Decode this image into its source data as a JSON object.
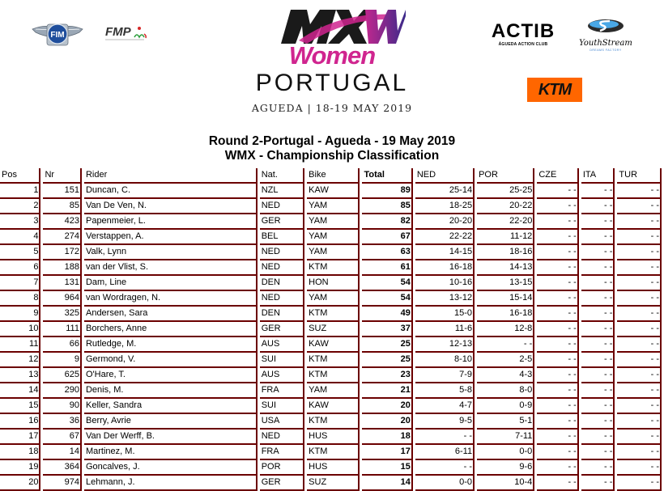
{
  "logos": {
    "fim": "FIM",
    "fmp": "FMP",
    "event": {
      "mark": "MXW",
      "women": "Women",
      "country": "PORTUGAL",
      "dates": "AGUEDA | 18-19 MAY 2019"
    },
    "actib": {
      "name": "ACTIB",
      "subtitle": "ÁGUEDA ACTION CLUB"
    },
    "youthstream": {
      "name": "YouthStream",
      "subtitle": "DREAMS FACTORY"
    },
    "ktm": "KTM"
  },
  "header": {
    "title_line1": "Round 2-Portugal - Agueda - 19 May 2019",
    "title_line2": "WMX - Championship Classification"
  },
  "colors": {
    "border": "#6b0000",
    "pink": "#d0258f",
    "ktm_orange": "#ff6600"
  },
  "table": {
    "columns": [
      "Pos",
      "Nr",
      "Rider",
      "Nat.",
      "Bike",
      "Total",
      "NED",
      "POR",
      "CZE",
      "ITA",
      "TUR"
    ],
    "rows": [
      {
        "pos": "1",
        "nr": "151",
        "rider": "Duncan, C.",
        "nat": "NZL",
        "bike": "KAW",
        "total": "89",
        "ned": "25-14",
        "por": "25-25",
        "cze": "- -",
        "ita": "- -",
        "tur": "- -"
      },
      {
        "pos": "2",
        "nr": "85",
        "rider": "Van De Ven, N.",
        "nat": "NED",
        "bike": "YAM",
        "total": "85",
        "ned": "18-25",
        "por": "20-22",
        "cze": "- -",
        "ita": "- -",
        "tur": "- -"
      },
      {
        "pos": "3",
        "nr": "423",
        "rider": "Papenmeier, L.",
        "nat": "GER",
        "bike": "YAM",
        "total": "82",
        "ned": "20-20",
        "por": "22-20",
        "cze": "- -",
        "ita": "- -",
        "tur": "- -"
      },
      {
        "pos": "4",
        "nr": "274",
        "rider": "Verstappen, A.",
        "nat": "BEL",
        "bike": "YAM",
        "total": "67",
        "ned": "22-22",
        "por": "11-12",
        "cze": "- -",
        "ita": "- -",
        "tur": "- -"
      },
      {
        "pos": "5",
        "nr": "172",
        "rider": "Valk, Lynn",
        "nat": "NED",
        "bike": "YAM",
        "total": "63",
        "ned": "14-15",
        "por": "18-16",
        "cze": "- -",
        "ita": "- -",
        "tur": "- -"
      },
      {
        "pos": "6",
        "nr": "188",
        "rider": "van der Vlist, S.",
        "nat": "NED",
        "bike": "KTM",
        "total": "61",
        "ned": "16-18",
        "por": "14-13",
        "cze": "- -",
        "ita": "- -",
        "tur": "- -"
      },
      {
        "pos": "7",
        "nr": "131",
        "rider": "Dam, Line",
        "nat": "DEN",
        "bike": "HON",
        "total": "54",
        "ned": "10-16",
        "por": "13-15",
        "cze": "- -",
        "ita": "- -",
        "tur": "- -"
      },
      {
        "pos": "8",
        "nr": "964",
        "rider": "van Wordragen, N.",
        "nat": "NED",
        "bike": "YAM",
        "total": "54",
        "ned": "13-12",
        "por": "15-14",
        "cze": "- -",
        "ita": "- -",
        "tur": "- -"
      },
      {
        "pos": "9",
        "nr": "325",
        "rider": "Andersen, Sara",
        "nat": "DEN",
        "bike": "KTM",
        "total": "49",
        "ned": "15-0",
        "por": "16-18",
        "cze": "- -",
        "ita": "- -",
        "tur": "- -"
      },
      {
        "pos": "10",
        "nr": "111",
        "rider": "Borchers, Anne",
        "nat": "GER",
        "bike": "SUZ",
        "total": "37",
        "ned": "11-6",
        "por": "12-8",
        "cze": "- -",
        "ita": "- -",
        "tur": "- -"
      },
      {
        "pos": "11",
        "nr": "66",
        "rider": "Rutledge, M.",
        "nat": "AUS",
        "bike": "KAW",
        "total": "25",
        "ned": "12-13",
        "por": "- -",
        "cze": "- -",
        "ita": "- -",
        "tur": "- -"
      },
      {
        "pos": "12",
        "nr": "9",
        "rider": "Germond, V.",
        "nat": "SUI",
        "bike": "KTM",
        "total": "25",
        "ned": "8-10",
        "por": "2-5",
        "cze": "- -",
        "ita": "- -",
        "tur": "- -"
      },
      {
        "pos": "13",
        "nr": "625",
        "rider": "O'Hare, T.",
        "nat": "AUS",
        "bike": "KTM",
        "total": "23",
        "ned": "7-9",
        "por": "4-3",
        "cze": "- -",
        "ita": "- -",
        "tur": "- -"
      },
      {
        "pos": "14",
        "nr": "290",
        "rider": "Denis, M.",
        "nat": "FRA",
        "bike": "YAM",
        "total": "21",
        "ned": "5-8",
        "por": "8-0",
        "cze": "- -",
        "ita": "- -",
        "tur": "- -"
      },
      {
        "pos": "15",
        "nr": "90",
        "rider": "Keller, Sandra",
        "nat": "SUI",
        "bike": "KAW",
        "total": "20",
        "ned": "4-7",
        "por": "0-9",
        "cze": "- -",
        "ita": "- -",
        "tur": "- -"
      },
      {
        "pos": "16",
        "nr": "36",
        "rider": "Berry, Avrie",
        "nat": "USA",
        "bike": "KTM",
        "total": "20",
        "ned": "9-5",
        "por": "5-1",
        "cze": "- -",
        "ita": "- -",
        "tur": "- -"
      },
      {
        "pos": "17",
        "nr": "67",
        "rider": "Van Der Werff, B.",
        "nat": "NED",
        "bike": "HUS",
        "total": "18",
        "ned": "- -",
        "por": "7-11",
        "cze": "- -",
        "ita": "- -",
        "tur": "- -"
      },
      {
        "pos": "18",
        "nr": "14",
        "rider": "Martinez, M.",
        "nat": "FRA",
        "bike": "KTM",
        "total": "17",
        "ned": "6-11",
        "por": "0-0",
        "cze": "- -",
        "ita": "- -",
        "tur": "- -"
      },
      {
        "pos": "19",
        "nr": "364",
        "rider": "Goncalves, J.",
        "nat": "POR",
        "bike": "HUS",
        "total": "15",
        "ned": "- -",
        "por": "9-6",
        "cze": "- -",
        "ita": "- -",
        "tur": "- -"
      },
      {
        "pos": "20",
        "nr": "974",
        "rider": "Lehmann, J.",
        "nat": "GER",
        "bike": "SUZ",
        "total": "14",
        "ned": "0-0",
        "por": "10-4",
        "cze": "- -",
        "ita": "- -",
        "tur": "- -"
      }
    ]
  }
}
